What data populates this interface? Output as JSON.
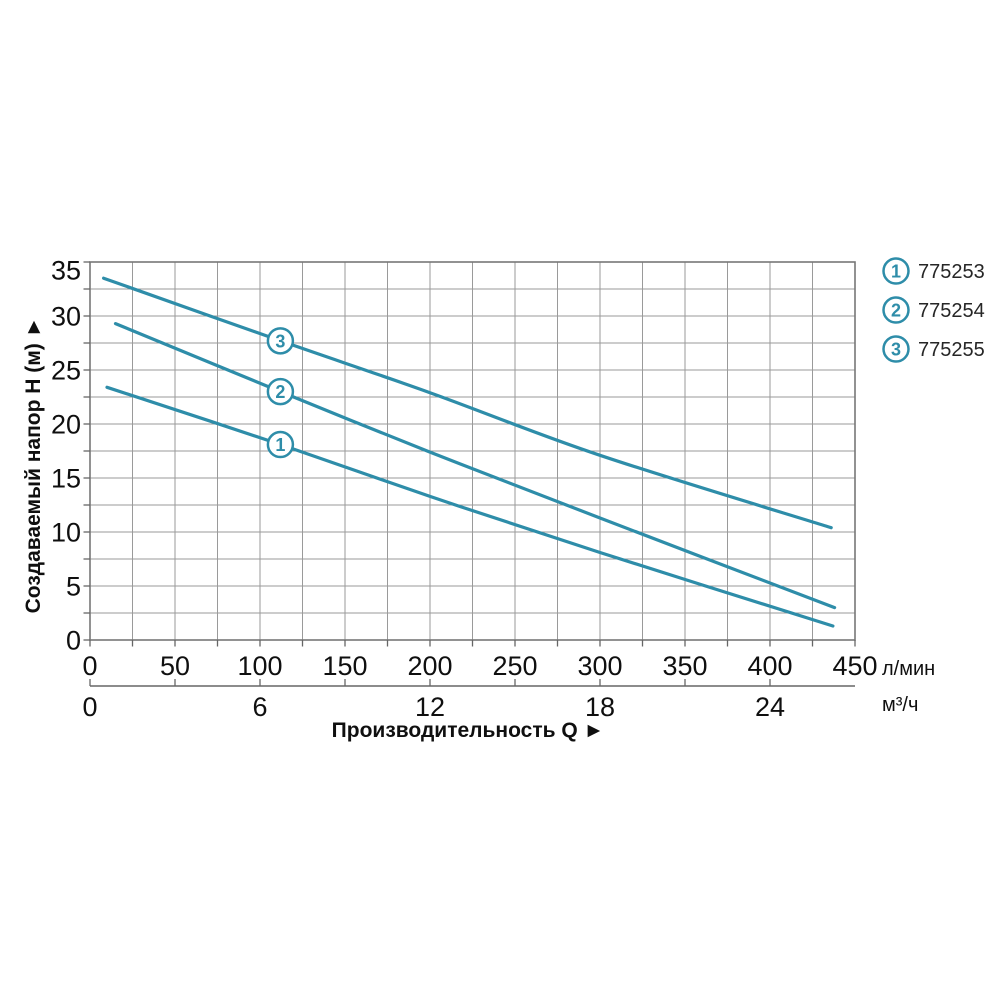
{
  "chart_data": {
    "type": "line",
    "title": "",
    "xlabel": "Производительность Q ►",
    "ylabel": "Создаваемый напор H (м) ►",
    "grid": true,
    "legend_position": "top-right",
    "y_axis": {
      "range": [
        0,
        35
      ],
      "grid_step": 2.5,
      "tick_labels": [
        0,
        5,
        10,
        15,
        20,
        25,
        30,
        35
      ]
    },
    "x_axis_primary": {
      "unit": "л/мин",
      "range": [
        0,
        450
      ],
      "grid_step": 25,
      "tick_labels": [
        0,
        50,
        100,
        150,
        200,
        250,
        300,
        350,
        400,
        450
      ]
    },
    "x_axis_secondary": {
      "unit": "м³/ч",
      "range": [
        0,
        27
      ],
      "tick_step": 3,
      "tick_labels": [
        0,
        6,
        12,
        18,
        24
      ],
      "lmin_per_unit": 16.6667
    },
    "series": [
      {
        "num": "1",
        "name": "775253",
        "points": [
          [
            10,
            23.4
          ],
          [
            112,
            18.1
          ],
          [
            200,
            13.3
          ],
          [
            300,
            8.1
          ],
          [
            437,
            1.3
          ]
        ],
        "marker_at": [
          112,
          18.1
        ]
      },
      {
        "num": "2",
        "name": "775254",
        "points": [
          [
            15,
            29.3
          ],
          [
            112,
            23.0
          ],
          [
            200,
            17.4
          ],
          [
            300,
            11.3
          ],
          [
            438,
            3.0
          ]
        ],
        "marker_at": [
          112,
          23.0
        ]
      },
      {
        "num": "3",
        "name": "775255",
        "points": [
          [
            8,
            33.5
          ],
          [
            112,
            27.7
          ],
          [
            200,
            22.9
          ],
          [
            300,
            17.1
          ],
          [
            436,
            10.4
          ]
        ],
        "marker_at": [
          112,
          27.7
        ]
      }
    ],
    "colors": {
      "line": "#2e8da9",
      "grid": "#9a9a9a",
      "border": "#777777",
      "axis": "#666666",
      "text": "#0f0f0f",
      "legend_text": "#262626"
    }
  }
}
